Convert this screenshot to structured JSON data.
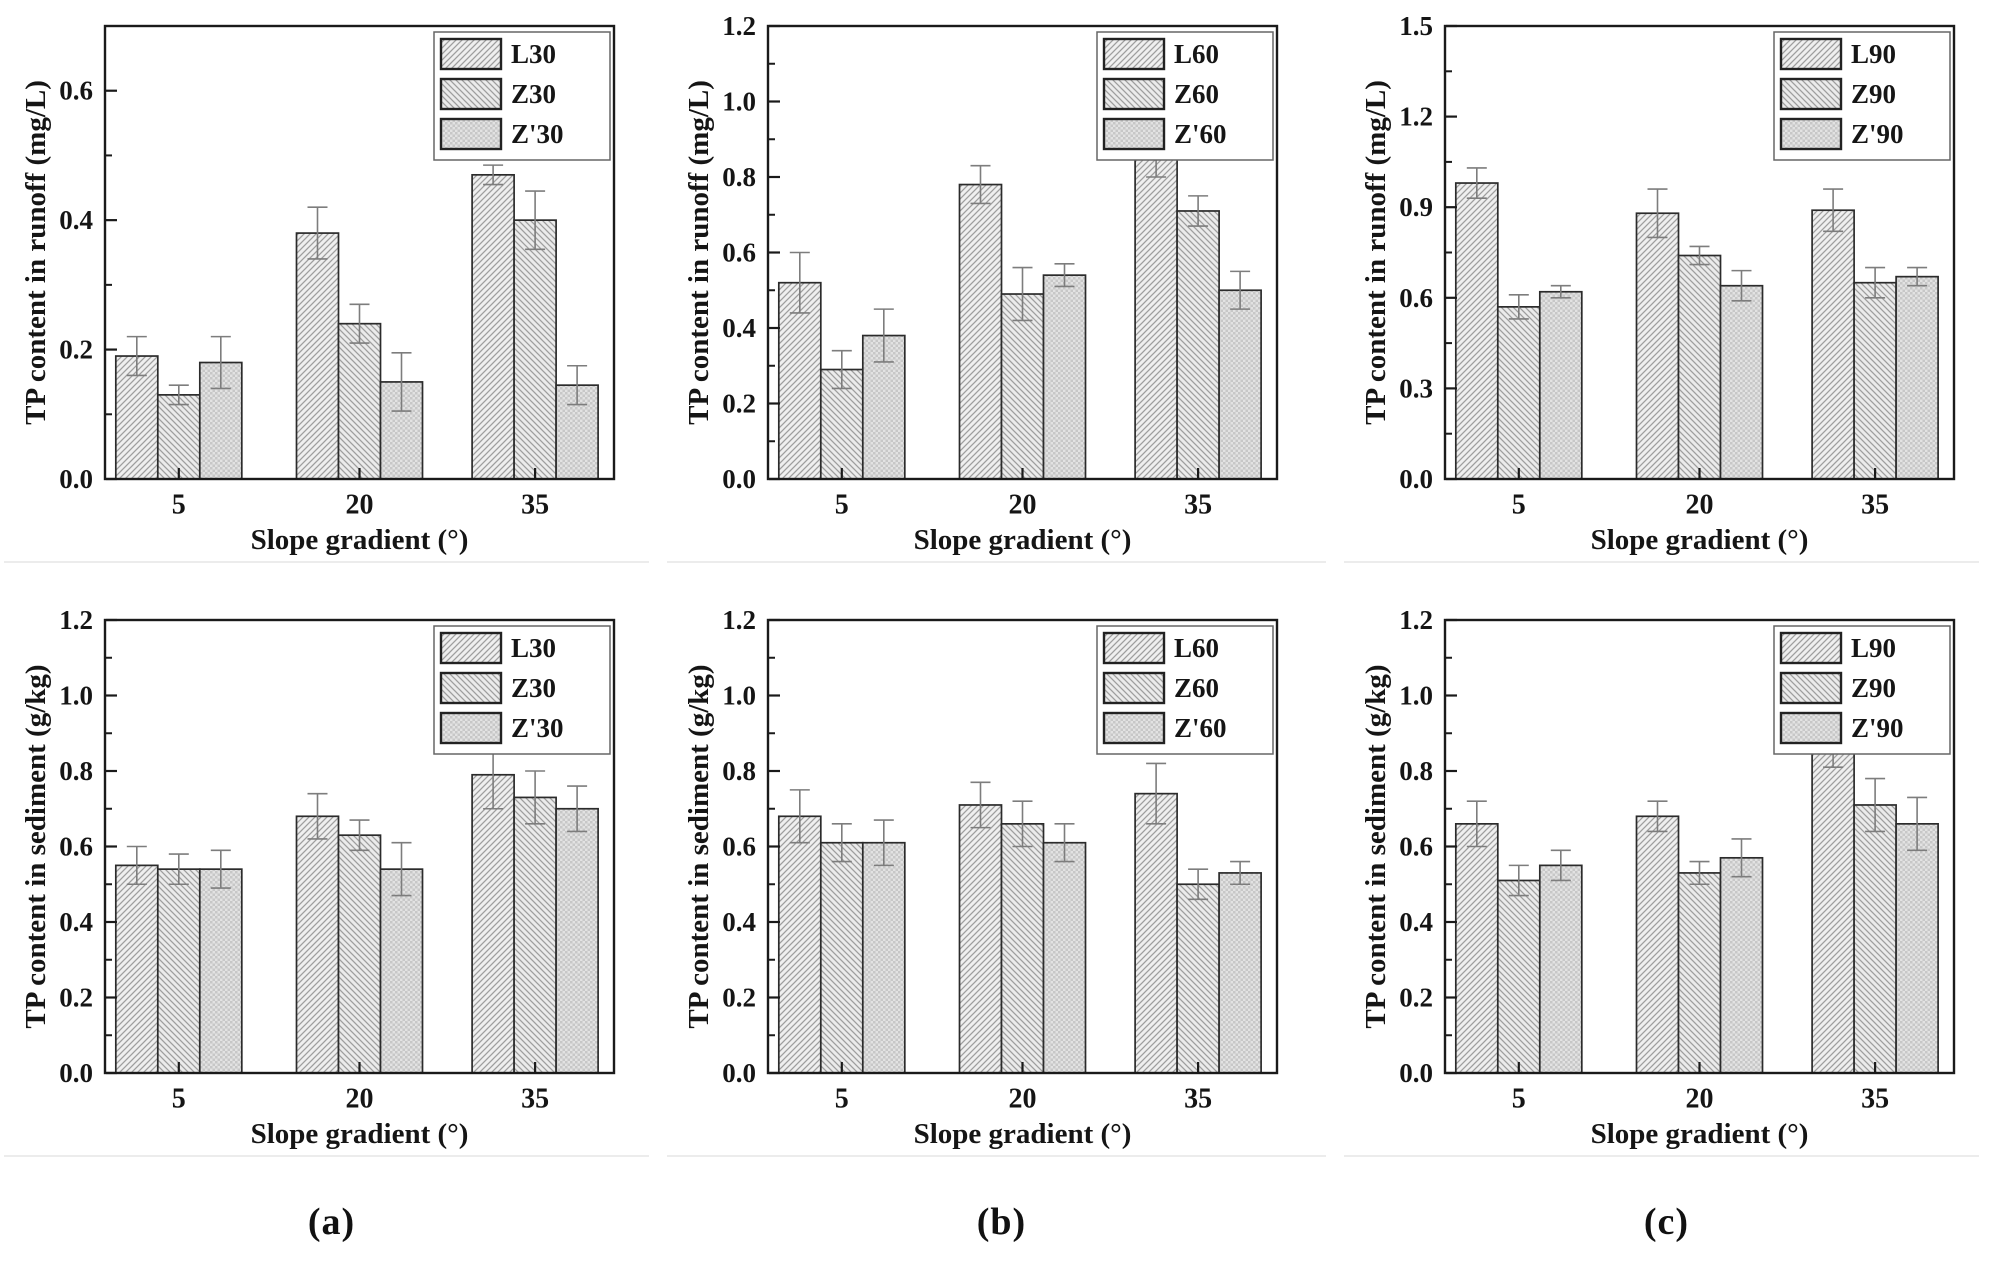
{
  "figure": {
    "captions": [
      "(a)",
      "(b)",
      "(c)"
    ]
  },
  "colors": {
    "axis": "#1a1a1a",
    "text": "#151515",
    "bar_border": "#2b2b2b",
    "bar_fill_light": "#efefef",
    "bar_fill_mid": "#ebebeb",
    "hatch_line": "#9e9e9e",
    "checker_dark": "#c7c7c7",
    "checker_light": "#e2e2e2",
    "error_bar": "#7d7d7d",
    "legend_border": "#666666",
    "legend_bg": "#ffffff"
  },
  "chart_data": [
    {
      "type": "bar",
      "id": "runoff-a",
      "ylabel": "TP content in runoff (mg/L)",
      "xlabel": "Slope gradient (°)",
      "categories": [
        "5",
        "20",
        "35"
      ],
      "ylim": [
        0,
        0.7
      ],
      "ytick_step": 0.2,
      "minor_step": 0.1,
      "ytick_decimals": 1,
      "grid": false,
      "legend_position": "top-right",
      "series": [
        {
          "name": "L30",
          "hatch": "diag-up",
          "values": [
            0.19,
            0.38,
            0.47
          ],
          "errors": [
            0.03,
            0.04,
            0.015
          ]
        },
        {
          "name": "Z30",
          "hatch": "diag-down",
          "values": [
            0.13,
            0.24,
            0.4
          ],
          "errors": [
            0.015,
            0.03,
            0.045
          ]
        },
        {
          "name": "Z'30",
          "hatch": "checker",
          "values": [
            0.18,
            0.15,
            0.145
          ],
          "errors": [
            0.04,
            0.045,
            0.03
          ]
        }
      ]
    },
    {
      "type": "bar",
      "id": "runoff-b",
      "ylabel": "TP content in runoff (mg/L)",
      "xlabel": "Slope gradient (°)",
      "categories": [
        "5",
        "20",
        "35"
      ],
      "ylim": [
        0,
        1.2
      ],
      "ytick_step": 0.2,
      "minor_step": 0.1,
      "ytick_decimals": 1,
      "grid": false,
      "legend_position": "top-right",
      "series": [
        {
          "name": "L60",
          "hatch": "diag-up",
          "values": [
            0.52,
            0.78,
            0.86
          ],
          "errors": [
            0.08,
            0.05,
            0.06
          ]
        },
        {
          "name": "Z60",
          "hatch": "diag-down",
          "values": [
            0.29,
            0.49,
            0.71
          ],
          "errors": [
            0.05,
            0.07,
            0.04
          ]
        },
        {
          "name": "Z'60",
          "hatch": "checker",
          "values": [
            0.38,
            0.54,
            0.5
          ],
          "errors": [
            0.07,
            0.03,
            0.05
          ]
        }
      ]
    },
    {
      "type": "bar",
      "id": "runoff-c",
      "ylabel": "TP content in runoff (mg/L)",
      "xlabel": "Slope gradient (°)",
      "categories": [
        "5",
        "20",
        "35"
      ],
      "ylim": [
        0,
        1.5
      ],
      "ytick_step": 0.3,
      "minor_step": 0.15,
      "ytick_decimals": 1,
      "grid": false,
      "legend_position": "top-right",
      "series": [
        {
          "name": "L90",
          "hatch": "diag-up",
          "values": [
            0.98,
            0.88,
            0.89
          ],
          "errors": [
            0.05,
            0.08,
            0.07
          ]
        },
        {
          "name": "Z90",
          "hatch": "diag-down",
          "values": [
            0.57,
            0.74,
            0.65
          ],
          "errors": [
            0.04,
            0.03,
            0.05
          ]
        },
        {
          "name": "Z'90",
          "hatch": "checker",
          "values": [
            0.62,
            0.64,
            0.67
          ],
          "errors": [
            0.02,
            0.05,
            0.03
          ]
        }
      ]
    },
    {
      "type": "bar",
      "id": "sediment-a",
      "ylabel": "TP content in sediment (g/kg)",
      "xlabel": "Slope gradient (°)",
      "categories": [
        "5",
        "20",
        "35"
      ],
      "ylim": [
        0,
        1.2
      ],
      "ytick_step": 0.2,
      "minor_step": 0.1,
      "ytick_decimals": 1,
      "grid": false,
      "legend_position": "top-right",
      "series": [
        {
          "name": "L30",
          "hatch": "diag-up",
          "values": [
            0.55,
            0.68,
            0.79
          ],
          "errors": [
            0.05,
            0.06,
            0.09
          ]
        },
        {
          "name": "Z30",
          "hatch": "diag-down",
          "values": [
            0.54,
            0.63,
            0.73
          ],
          "errors": [
            0.04,
            0.04,
            0.07
          ]
        },
        {
          "name": "Z'30",
          "hatch": "checker",
          "values": [
            0.54,
            0.54,
            0.7
          ],
          "errors": [
            0.05,
            0.07,
            0.06
          ]
        }
      ]
    },
    {
      "type": "bar",
      "id": "sediment-b",
      "ylabel": "TP content in sediment (g/kg)",
      "xlabel": "Slope gradient (°)",
      "categories": [
        "5",
        "20",
        "35"
      ],
      "ylim": [
        0,
        1.2
      ],
      "ytick_step": 0.2,
      "minor_step": 0.1,
      "ytick_decimals": 1,
      "grid": false,
      "legend_position": "top-right",
      "series": [
        {
          "name": "L60",
          "hatch": "diag-up",
          "values": [
            0.68,
            0.71,
            0.74
          ],
          "errors": [
            0.07,
            0.06,
            0.08
          ]
        },
        {
          "name": "Z60",
          "hatch": "diag-down",
          "values": [
            0.61,
            0.66,
            0.5
          ],
          "errors": [
            0.05,
            0.06,
            0.04
          ]
        },
        {
          "name": "Z'60",
          "hatch": "checker",
          "values": [
            0.61,
            0.61,
            0.53
          ],
          "errors": [
            0.06,
            0.05,
            0.03
          ]
        }
      ]
    },
    {
      "type": "bar",
      "id": "sediment-c",
      "ylabel": "TP content in sediment (g/kg)",
      "xlabel": "Slope gradient (°)",
      "categories": [
        "5",
        "20",
        "35"
      ],
      "ylim": [
        0,
        1.2
      ],
      "ytick_step": 0.2,
      "minor_step": 0.1,
      "ytick_decimals": 1,
      "grid": false,
      "legend_position": "top-right",
      "series": [
        {
          "name": "L90",
          "hatch": "diag-up",
          "values": [
            0.66,
            0.68,
            0.85
          ],
          "errors": [
            0.06,
            0.04,
            0.04
          ]
        },
        {
          "name": "Z90",
          "hatch": "diag-down",
          "values": [
            0.51,
            0.53,
            0.71
          ],
          "errors": [
            0.04,
            0.03,
            0.07
          ]
        },
        {
          "name": "Z'90",
          "hatch": "checker",
          "values": [
            0.55,
            0.57,
            0.66
          ],
          "errors": [
            0.04,
            0.05,
            0.07
          ]
        }
      ]
    }
  ]
}
